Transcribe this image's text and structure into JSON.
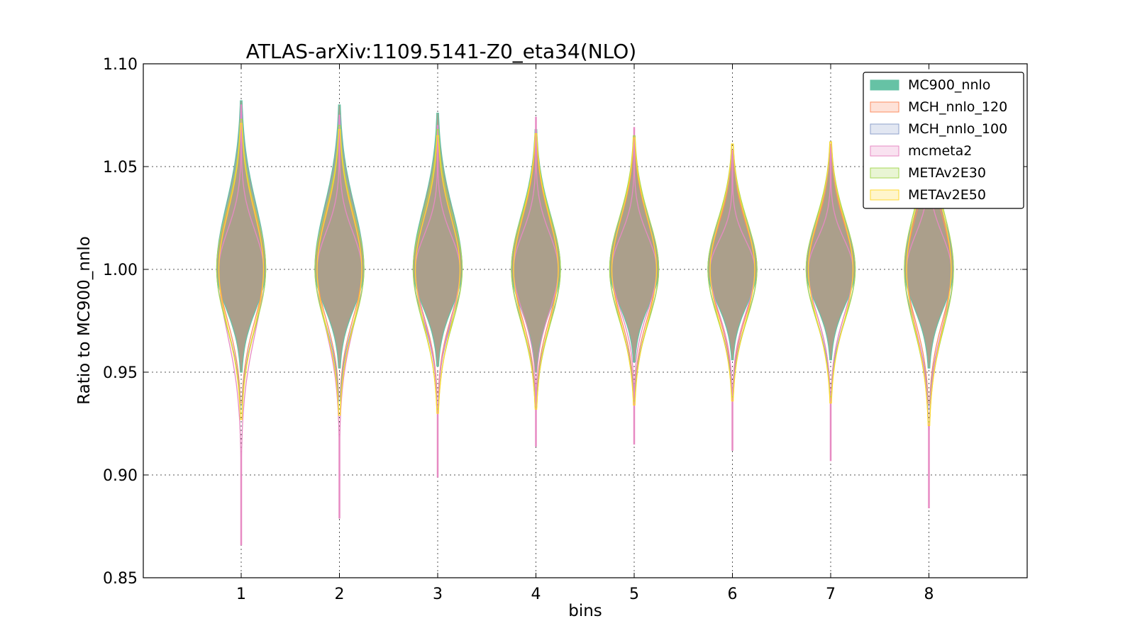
{
  "chart_data": {
    "type": "violin",
    "title": "ATLAS-arXiv:1109.5141-Z0_eta34(NLO)",
    "xlabel": "bins",
    "ylabel": "Ratio to MC900_nnlo",
    "categories": [
      "1",
      "2",
      "3",
      "4",
      "5",
      "6",
      "7",
      "8"
    ],
    "ylim": [
      0.85,
      1.1
    ],
    "yticks": [
      "0.85",
      "0.90",
      "0.95",
      "1.00",
      "1.05",
      "1.10"
    ],
    "grid": true,
    "legend_position": "top-right",
    "series": [
      {
        "name": "MC900_nnlo",
        "fill": "#66c2a5",
        "stroke": "#66c2a5",
        "solid": true,
        "max": [
          1.082,
          1.08,
          1.076,
          1.068,
          1.063,
          1.058,
          1.06,
          1.067
        ],
        "min": [
          0.95,
          0.952,
          0.953,
          0.95,
          0.955,
          0.956,
          0.956,
          0.952
        ]
      },
      {
        "name": "MCH_nnlo_120",
        "fill": "#fc8d62",
        "stroke": "#fc8d62",
        "solid": false,
        "max": [
          1.075,
          1.071,
          1.066,
          1.064,
          1.062,
          1.057,
          1.058,
          1.066
        ],
        "min": [
          0.935,
          0.938,
          0.94,
          0.938,
          0.94,
          0.942,
          0.942,
          0.935
        ]
      },
      {
        "name": "MCH_nnlo_100",
        "fill": "#8da0cb",
        "stroke": "#8da0cb",
        "solid": false,
        "max": [
          1.076,
          1.073,
          1.068,
          1.066,
          1.063,
          1.058,
          1.059,
          1.067
        ],
        "min": [
          0.932,
          0.936,
          0.938,
          0.936,
          0.938,
          0.94,
          0.94,
          0.932
        ]
      },
      {
        "name": "mcmeta2",
        "fill": "#e78ac3",
        "stroke": "#e78ac3",
        "solid": false,
        "max": [
          1.08,
          1.075,
          1.07,
          1.074,
          1.069,
          1.058,
          1.061,
          1.07
        ],
        "min": [
          0.866,
          0.879,
          0.899,
          0.914,
          0.915,
          0.912,
          0.907,
          0.884
        ]
      },
      {
        "name": "METAv2E30",
        "fill": "#a6d854",
        "stroke": "#a6d854",
        "solid": false,
        "max": [
          1.073,
          1.07,
          1.068,
          1.066,
          1.065,
          1.061,
          1.062,
          1.074
        ],
        "min": [
          0.93,
          0.932,
          0.932,
          0.933,
          0.936,
          0.938,
          0.938,
          0.926
        ]
      },
      {
        "name": "METAv2E50",
        "fill": "#ffd92f",
        "stroke": "#ffd92f",
        "solid": false,
        "max": [
          1.071,
          1.068,
          1.065,
          1.066,
          1.064,
          1.061,
          1.062,
          1.075
        ],
        "min": [
          0.927,
          0.929,
          0.93,
          0.932,
          0.934,
          0.936,
          0.935,
          0.924
        ]
      }
    ],
    "violin_fill_color": "#ab9f8b"
  }
}
